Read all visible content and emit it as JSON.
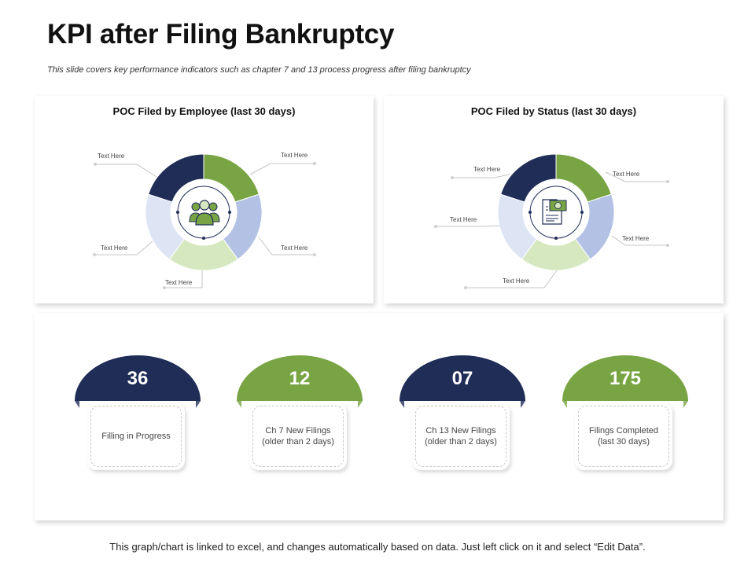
{
  "slide": {
    "title": "KPI after Filing Bankruptcy",
    "subtitle": "This slide covers key performance indicators such as chapter 7 and 13 process progress after filing bankruptcy",
    "footer": "This graph/chart is linked to excel, and changes automatically based on data.  Just left click on it and select “Edit Data”."
  },
  "colors": {
    "navy": "#1f2d57",
    "green": "#79a443",
    "light_blue": "#b3c2e4",
    "pale_blue": "#dde4f3",
    "pale_green": "#d6e8bf",
    "callout_line": "#c4c4c4"
  },
  "chart_data": [
    {
      "type": "pie",
      "title": "POC Filed by Employee (last 30 days)",
      "center_icon": "employees-icon",
      "slices": [
        {
          "label": "Text Here",
          "value": 20,
          "color": "#79a443"
        },
        {
          "label": "Text Here",
          "value": 20,
          "color": "#b3c2e4"
        },
        {
          "label": "Text Here",
          "value": 20,
          "color": "#d6e8bf"
        },
        {
          "label": "Text Here",
          "value": 20,
          "color": "#dde4f3"
        },
        {
          "label": "Text Here",
          "value": 20,
          "color": "#1f2d57"
        }
      ]
    },
    {
      "type": "pie",
      "title": "POC Filed by Status (last 30 days)",
      "center_icon": "invoice-icon",
      "slices": [
        {
          "label": "Text Here",
          "value": 20,
          "color": "#79a443"
        },
        {
          "label": "Text Here",
          "value": 20,
          "color": "#b3c2e4"
        },
        {
          "label": "Text Here",
          "value": 20,
          "color": "#d6e8bf"
        },
        {
          "label": "Text Here",
          "value": 20,
          "color": "#dde4f3"
        },
        {
          "label": "Text Here",
          "value": 20,
          "color": "#1f2d57"
        }
      ]
    }
  ],
  "kpis": [
    {
      "value": "36",
      "label": "Filling in Progress",
      "color": "#1f2d57"
    },
    {
      "value": "12",
      "label": "Ch 7 New Filings\n(older than 2 days)",
      "color": "#79a443"
    },
    {
      "value": "07",
      "label": "Ch 13 New Filings\n(older than 2 days)",
      "color": "#1f2d57"
    },
    {
      "value": "175",
      "label": "Filings Completed\n(last 30 days)",
      "color": "#79a443"
    }
  ]
}
